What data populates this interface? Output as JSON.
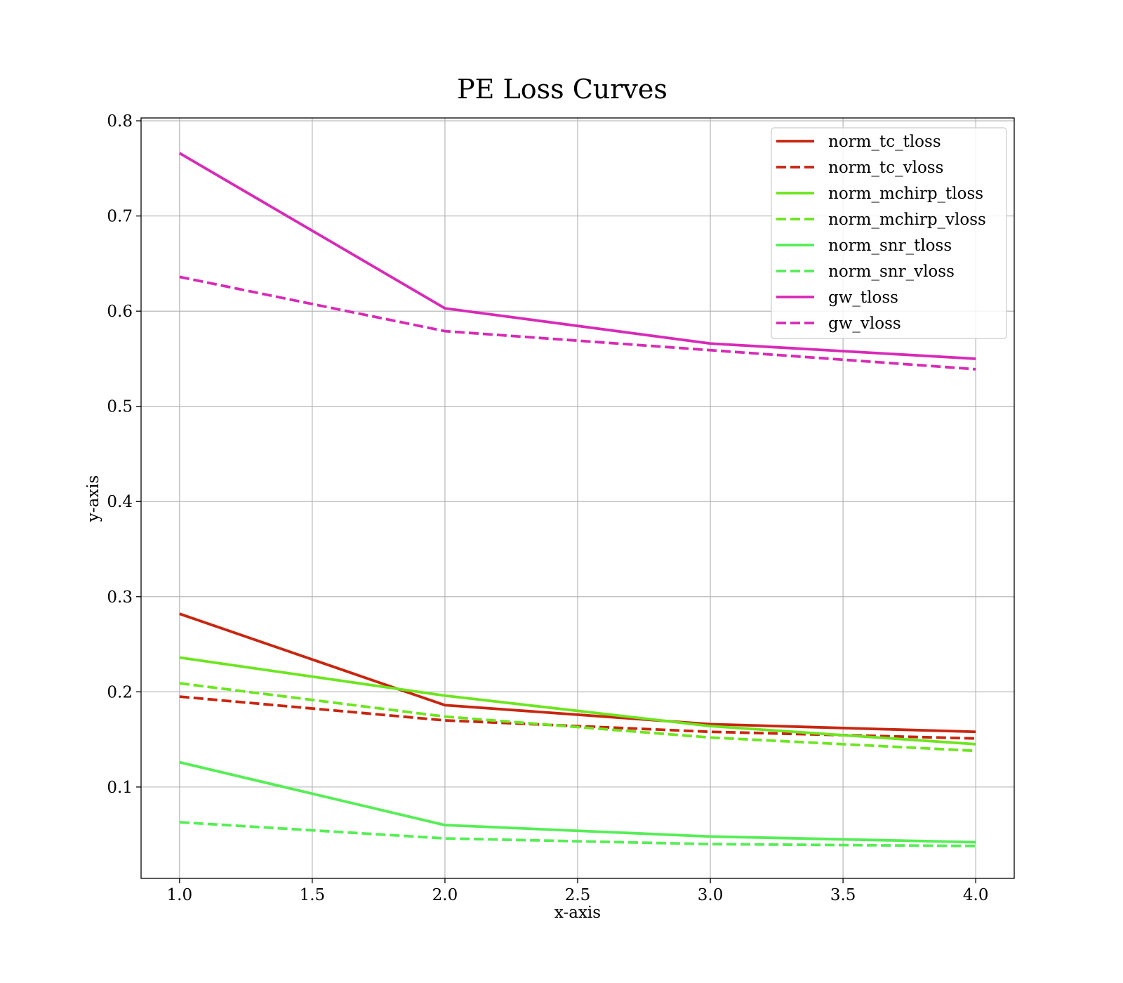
{
  "chart_data": {
    "type": "line",
    "title": "PE Loss Curves",
    "xlabel": "x-axis",
    "ylabel": "y-axis",
    "x": [
      1,
      2,
      3,
      4
    ],
    "xlim": [
      0.855,
      4.145
    ],
    "ylim": [
      0.004,
      0.803
    ],
    "xticks": [
      1.0,
      1.5,
      2.0,
      2.5,
      3.0,
      3.5,
      4.0
    ],
    "xtick_labels": [
      "1.0",
      "1.5",
      "2.0",
      "2.5",
      "3.0",
      "3.5",
      "4.0"
    ],
    "yticks": [
      0.1,
      0.2,
      0.3,
      0.4,
      0.5,
      0.6,
      0.7,
      0.8
    ],
    "ytick_labels": [
      "0.1",
      "0.2",
      "0.3",
      "0.4",
      "0.5",
      "0.6",
      "0.7",
      "0.8"
    ],
    "grid": true,
    "legend_position": "top-right",
    "series": [
      {
        "name": "norm_tc_tloss",
        "values": [
          0.282,
          0.186,
          0.166,
          0.158
        ],
        "color": "#c8260f",
        "style": "solid"
      },
      {
        "name": "norm_tc_vloss",
        "values": [
          0.195,
          0.17,
          0.158,
          0.151
        ],
        "color": "#c8260f",
        "style": "dashed"
      },
      {
        "name": "norm_mchirp_tloss",
        "values": [
          0.236,
          0.196,
          0.164,
          0.145
        ],
        "color": "#6ce61e",
        "style": "solid"
      },
      {
        "name": "norm_mchirp_vloss",
        "values": [
          0.209,
          0.174,
          0.152,
          0.138
        ],
        "color": "#6ce61e",
        "style": "dashed"
      },
      {
        "name": "norm_snr_tloss",
        "values": [
          0.126,
          0.06,
          0.048,
          0.042
        ],
        "color": "#55ee55",
        "style": "solid"
      },
      {
        "name": "norm_snr_vloss",
        "values": [
          0.063,
          0.046,
          0.04,
          0.038
        ],
        "color": "#55ee55",
        "style": "dashed"
      },
      {
        "name": "gw_tloss",
        "values": [
          0.766,
          0.603,
          0.566,
          0.55
        ],
        "color": "#d82ab8",
        "style": "solid"
      },
      {
        "name": "gw_vloss",
        "values": [
          0.636,
          0.579,
          0.559,
          0.539
        ],
        "color": "#d82ab8",
        "style": "dashed"
      }
    ]
  }
}
